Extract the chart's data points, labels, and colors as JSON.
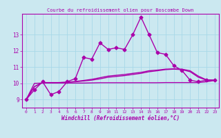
{
  "title": "Courbe du refroidissement olien pour Boscombe Down",
  "xlabel": "Windchill (Refroidissement éolien,°C)",
  "bg_color": "#cbe8f0",
  "grid_color": "#a8d8e8",
  "line_color": "#aa00aa",
  "marker": "D",
  "markersize": 2.5,
  "linewidth": 1.0,
  "xlim": [
    -0.5,
    23.5
  ],
  "ylim": [
    8.5,
    14.3
  ],
  "yticks": [
    9,
    10,
    11,
    12,
    13
  ],
  "xticks": [
    0,
    1,
    2,
    3,
    4,
    5,
    6,
    7,
    8,
    9,
    10,
    11,
    12,
    13,
    14,
    15,
    16,
    17,
    18,
    19,
    20,
    21,
    22,
    23
  ],
  "x": [
    0,
    1,
    2,
    3,
    4,
    5,
    6,
    7,
    8,
    9,
    10,
    11,
    12,
    13,
    14,
    15,
    16,
    17,
    18,
    19,
    20,
    21,
    22,
    23
  ],
  "y_main": [
    9.0,
    9.6,
    10.1,
    9.3,
    9.5,
    10.1,
    10.3,
    11.6,
    11.5,
    12.5,
    12.1,
    12.2,
    12.1,
    13.0,
    14.1,
    13.0,
    11.9,
    11.8,
    11.1,
    10.8,
    10.2,
    10.1,
    10.2,
    10.2
  ],
  "y_curve1": [
    9.0,
    9.8,
    10.05,
    10.05,
    10.05,
    10.07,
    10.12,
    10.18,
    10.25,
    10.35,
    10.45,
    10.5,
    10.55,
    10.62,
    10.68,
    10.78,
    10.82,
    10.88,
    10.9,
    10.88,
    10.78,
    10.45,
    10.22,
    10.2
  ],
  "y_curve2": [
    9.0,
    9.8,
    10.05,
    10.05,
    10.05,
    10.07,
    10.1,
    10.15,
    10.2,
    10.28,
    10.38,
    10.43,
    10.48,
    10.55,
    10.62,
    10.72,
    10.78,
    10.85,
    10.88,
    10.85,
    10.72,
    10.38,
    10.2,
    10.18
  ],
  "y_flat": [
    9.0,
    10.0,
    10.02,
    10.02,
    10.02,
    10.02,
    10.02,
    10.02,
    10.03,
    10.04,
    10.04,
    10.04,
    10.04,
    10.04,
    10.04,
    10.04,
    10.04,
    10.05,
    10.05,
    10.05,
    10.05,
    10.05,
    10.1,
    10.18
  ]
}
